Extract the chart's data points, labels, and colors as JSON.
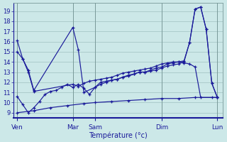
{
  "background_color": "#cce8e8",
  "grid_color": "#a0c0c0",
  "line_color": "#1a1a9a",
  "xlabel": "Température (°c)",
  "yticks": [
    9,
    10,
    11,
    12,
    13,
    14,
    15,
    16,
    17,
    18,
    19
  ],
  "xtick_labels": [
    "Ven",
    "Mar",
    "Sam",
    "Dim",
    "Lun"
  ],
  "xtick_positions": [
    0,
    30,
    42,
    78,
    108
  ],
  "vline_positions": [
    0,
    30,
    42,
    78,
    108
  ],
  "series1_x": [
    0,
    3,
    6,
    9,
    30,
    33,
    36,
    39,
    42,
    45,
    48,
    51,
    54,
    57,
    60,
    63,
    66,
    69,
    72,
    75,
    78,
    81,
    84,
    87,
    90,
    93,
    96,
    99,
    102,
    105,
    108
  ],
  "series1_y": [
    16.1,
    14.3,
    13.0,
    11.1,
    11.8,
    11.6,
    11.9,
    12.1,
    12.2,
    12.3,
    12.4,
    12.5,
    12.7,
    12.9,
    13.0,
    13.1,
    13.2,
    13.3,
    13.4,
    13.6,
    13.8,
    13.9,
    14.0,
    14.0,
    14.1,
    15.9,
    19.2,
    19.4,
    17.2,
    11.9,
    10.5
  ],
  "series2_x": [
    0,
    3,
    6,
    9,
    30,
    33,
    36,
    42,
    45,
    48,
    51,
    54,
    57,
    60,
    63,
    66,
    69,
    72,
    75,
    78,
    81,
    84,
    87,
    90,
    93,
    96,
    99,
    102,
    105,
    108
  ],
  "series2_y": [
    15.0,
    14.3,
    13.2,
    11.2,
    17.4,
    15.2,
    11.0,
    11.5,
    12.0,
    12.1,
    12.2,
    12.3,
    12.5,
    12.6,
    12.8,
    13.0,
    13.0,
    13.1,
    13.2,
    13.4,
    13.6,
    13.7,
    13.8,
    14.0,
    15.9,
    19.2,
    19.4,
    17.2,
    11.9,
    10.5
  ],
  "series3_x": [
    0,
    3,
    6,
    9,
    12,
    15,
    18,
    21,
    24,
    27,
    30,
    33,
    36,
    39,
    42,
    45,
    48,
    51,
    54,
    57,
    60,
    63,
    66,
    69,
    72,
    75,
    78,
    81,
    84,
    87,
    90,
    93,
    96,
    99,
    108
  ],
  "series3_y": [
    10.6,
    9.8,
    9.0,
    9.5,
    10.1,
    10.8,
    11.1,
    11.2,
    11.5,
    11.8,
    11.5,
    11.8,
    11.4,
    10.8,
    11.5,
    11.8,
    12.0,
    12.2,
    12.3,
    12.5,
    12.7,
    12.8,
    13.0,
    13.0,
    13.2,
    13.4,
    13.5,
    13.8,
    13.9,
    14.0,
    13.9,
    13.8,
    13.5,
    10.5,
    10.5
  ],
  "series4_x": [
    0,
    9,
    18,
    27,
    36,
    42,
    51,
    60,
    69,
    78,
    87,
    96,
    105,
    108
  ],
  "series4_y": [
    9.0,
    9.2,
    9.5,
    9.7,
    9.9,
    10.0,
    10.1,
    10.2,
    10.3,
    10.4,
    10.4,
    10.5,
    10.5,
    10.5
  ],
  "xlim": [
    -2,
    111
  ],
  "ylim": [
    8.5,
    19.8
  ],
  "figsize": [
    3.2,
    2.0
  ],
  "dpi": 100
}
